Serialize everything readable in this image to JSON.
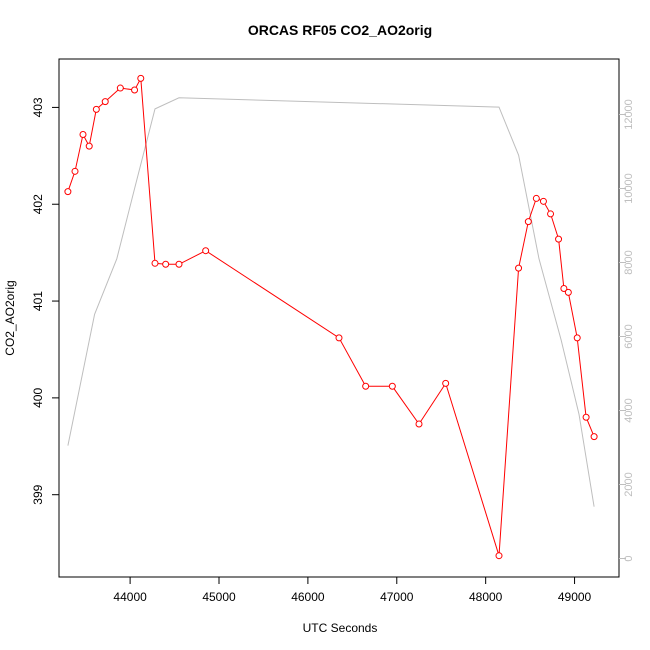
{
  "chart_data": {
    "type": "line",
    "title": "ORCAS RF05 CO2_AO2orig",
    "xlabel": "UTC Seconds",
    "ylabel": "CO2_AO2orig",
    "xlim": [
      43200,
      49500
    ],
    "ylim": [
      398.15,
      403.5
    ],
    "x_ticks": [
      44000,
      45000,
      46000,
      47000,
      48000,
      49000
    ],
    "y_ticks": [
      399,
      400,
      401,
      402,
      403
    ],
    "grid": false,
    "legend": "none",
    "series": [
      {
        "axis": "left",
        "color": "#ff0000",
        "style": "line+circles",
        "x": [
          43300,
          43380,
          43470,
          43540,
          43620,
          43720,
          43890,
          44050,
          44120,
          44280,
          44400,
          44550,
          44850,
          46350,
          46650,
          46950,
          47250,
          47550,
          48150,
          48370,
          48480,
          48570,
          48650,
          48730,
          48820,
          48880,
          48930,
          49030,
          49130,
          49220
        ],
        "values": [
          402.13,
          402.34,
          402.72,
          402.6,
          402.98,
          403.06,
          403.2,
          403.18,
          403.3,
          401.39,
          401.38,
          401.38,
          401.52,
          400.62,
          400.12,
          400.12,
          399.73,
          400.15,
          398.37,
          401.34,
          401.82,
          402.06,
          402.03,
          401.9,
          401.64,
          401.13,
          401.09,
          400.62,
          399.8,
          399.6
        ]
      },
      {
        "axis": "right",
        "color": "#bebebe",
        "style": "line",
        "x": [
          43300,
          43600,
          43850,
          44050,
          44280,
          44550,
          48150,
          48370,
          48600,
          48850,
          49050,
          49220
        ],
        "values": [
          3050,
          6600,
          8100,
          10000,
          12150,
          12450,
          12200,
          10900,
          8100,
          5900,
          3900,
          1400
        ]
      }
    ],
    "y2lim": [
      -500,
      13500
    ],
    "y2_ticks": [
      0,
      2000,
      4000,
      6000,
      8000,
      10000,
      12000
    ]
  }
}
